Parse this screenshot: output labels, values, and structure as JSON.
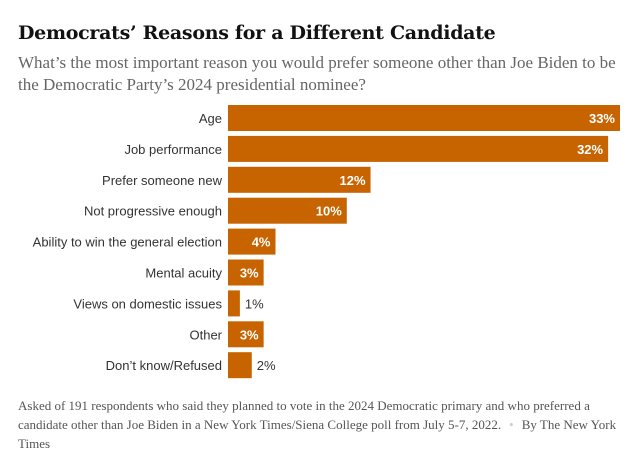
{
  "title": "Democrats’ Reasons for a Different Candidate",
  "subtitle": "What’s the most important reason you would prefer someone other than Joe Biden to be the Democratic Party’s 2024 presidential nominee?",
  "note": "Asked of 191 respondents who said they planned to vote in the 2024 Democratic primary and who preferred a candidate other than Joe Biden in a New York Times/Siena College poll from July 5-7, 2022.",
  "credit": "By The New York Times",
  "chart_data": {
    "type": "bar",
    "orientation": "horizontal",
    "categories": [
      "Age",
      "Job performance",
      "Prefer someone new",
      "Not progressive enough",
      "Ability to win the general election",
      "Mental acuity",
      "Views on domestic issues",
      "Other",
      "Don’t know/Refused"
    ],
    "values": [
      33,
      32,
      12,
      10,
      4,
      3,
      1,
      3,
      2
    ],
    "unit": "%",
    "labels": [
      "33%",
      "32%",
      "12%",
      "10%",
      "4%",
      "3%",
      "1%",
      "3%",
      "2%"
    ],
    "grid": false,
    "bar_color": "#c86400"
  }
}
